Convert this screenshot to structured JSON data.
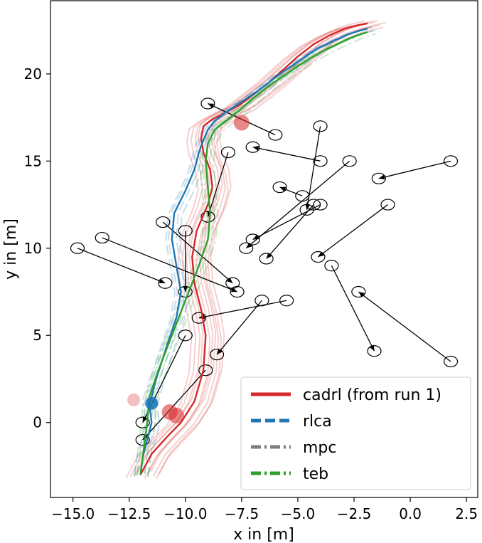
{
  "chart_data": {
    "type": "line",
    "xlabel": "x in [m]",
    "ylabel": "y in [m]",
    "xlim": [
      -16.0,
      3.0
    ],
    "ylim": [
      -4.3,
      24.2
    ],
    "xticks": [
      -15.0,
      -12.5,
      -10.0,
      -7.5,
      -5.0,
      -2.5,
      0.0,
      2.5
    ],
    "xtick_labels": [
      "−15.0",
      "−12.5",
      "−10.0",
      "−7.5",
      "−5.0",
      "−2.5",
      "0.0",
      "2.5"
    ],
    "yticks": [
      0,
      5,
      10,
      15,
      20
    ],
    "ytick_labels": [
      "0",
      "5",
      "10",
      "15",
      "20"
    ],
    "grid": false,
    "legend_position": "bottom-right",
    "series": [
      {
        "name": "cadrl (from run 1)",
        "color": "#d62728",
        "style": "solid",
        "x": [
          -12.0,
          -11.5,
          -10.8,
          -10.2,
          -9.6,
          -9.2,
          -9.1,
          -9.3,
          -9.6,
          -9.7,
          -9.5,
          -9.0,
          -8.8,
          -8.9,
          -9.2,
          -9.3,
          -9.2,
          -8.8,
          -8.2,
          -7.6,
          -7.0,
          -6.3,
          -5.6,
          -5.0,
          -4.3,
          -3.6,
          -2.9,
          -2.3,
          -1.9
        ],
        "y": [
          -3.0,
          -1.8,
          -0.8,
          0.0,
          1.2,
          3.0,
          5.0,
          6.5,
          8.0,
          9.5,
          11.0,
          12.5,
          13.5,
          14.5,
          15.5,
          16.3,
          17.0,
          17.4,
          17.8,
          18.2,
          18.8,
          19.5,
          20.3,
          21.0,
          21.7,
          22.2,
          22.6,
          22.8,
          22.9
        ]
      },
      {
        "name": "rlca",
        "color": "#1f77b4",
        "style": "dashed",
        "x": [
          -12.0,
          -11.9,
          -11.7,
          -11.5,
          -11.6,
          -11.3,
          -10.8,
          -10.4,
          -10.2,
          -10.4,
          -10.6,
          -10.5,
          -10.0,
          -9.6,
          -9.4,
          -9.2,
          -9.0,
          -8.7,
          -8.2,
          -7.5,
          -6.7,
          -5.9,
          -5.0,
          -4.2,
          -3.4,
          -2.7,
          -2.2,
          -1.9
        ],
        "y": [
          -3.0,
          -2.0,
          -1.0,
          0.0,
          1.0,
          2.5,
          4.5,
          6.0,
          7.5,
          9.0,
          10.5,
          12.0,
          13.3,
          14.5,
          15.5,
          16.2,
          16.8,
          17.3,
          17.8,
          18.4,
          19.1,
          19.9,
          20.7,
          21.4,
          21.9,
          22.3,
          22.5,
          22.6
        ]
      },
      {
        "name": "mpc",
        "color": "#7f7f7f",
        "style": "dashdot",
        "x": [],
        "y": []
      },
      {
        "name": "teb",
        "color": "#2ca02c",
        "style": "dashdot",
        "x": [
          -12.0,
          -11.9,
          -11.8,
          -11.7,
          -11.6,
          -11.2,
          -10.6,
          -10.0,
          -9.4,
          -9.0,
          -8.9,
          -9.0,
          -9.1,
          -9.0,
          -8.7,
          -8.2,
          -7.6,
          -7.0,
          -6.3,
          -5.5,
          -4.7,
          -3.9,
          -3.1,
          -2.4,
          -1.9
        ],
        "y": [
          -3.0,
          -2.0,
          -1.0,
          0.0,
          1.5,
          3.0,
          5.0,
          7.0,
          9.0,
          10.5,
          12.0,
          13.5,
          15.0,
          16.0,
          16.8,
          17.3,
          17.9,
          18.6,
          19.3,
          20.0,
          20.7,
          21.3,
          21.8,
          22.2,
          22.4
        ]
      }
    ],
    "agents": [
      {
        "start": [
          -6.0,
          16.5
        ],
        "end": [
          -9.0,
          18.3
        ]
      },
      {
        "start": [
          -4.0,
          15.0
        ],
        "end": [
          -7.0,
          15.8
        ]
      },
      {
        "start": [
          -4.0,
          17.0
        ],
        "end": [
          -4.6,
          12.2
        ]
      },
      {
        "start": [
          -2.7,
          15.0
        ],
        "end": [
          -7.3,
          10.0
        ]
      },
      {
        "start": [
          1.8,
          15.0
        ],
        "end": [
          -1.4,
          14.0
        ]
      },
      {
        "start": [
          -4.8,
          13.0
        ],
        "end": [
          -5.8,
          13.5
        ]
      },
      {
        "start": [
          -4.0,
          12.5
        ],
        "end": [
          -7.0,
          10.5
        ]
      },
      {
        "start": [
          -1.0,
          12.5
        ],
        "end": [
          -4.1,
          9.5
        ]
      },
      {
        "start": [
          -4.3,
          12.5
        ],
        "end": [
          -6.4,
          9.4
        ]
      },
      {
        "start": [
          -8.1,
          15.5
        ],
        "end": [
          -9.0,
          11.8
        ]
      },
      {
        "start": [
          -13.7,
          10.6
        ],
        "end": [
          -7.7,
          7.5
        ]
      },
      {
        "start": [
          -14.8,
          10.0
        ],
        "end": [
          -10.9,
          8.0
        ]
      },
      {
        "start": [
          -11.0,
          11.5
        ],
        "end": [
          -7.9,
          8.0
        ]
      },
      {
        "start": [
          -10.0,
          11.0
        ],
        "end": [
          -10.0,
          7.5
        ]
      },
      {
        "start": [
          -3.5,
          9.0
        ],
        "end": [
          -1.6,
          4.1
        ]
      },
      {
        "start": [
          1.8,
          3.5
        ],
        "end": [
          -2.3,
          7.5
        ]
      },
      {
        "start": [
          -6.6,
          7.0
        ],
        "end": [
          -8.6,
          3.9
        ]
      },
      {
        "start": [
          -5.5,
          7.0
        ],
        "end": [
          -9.4,
          6.0
        ]
      },
      {
        "start": [
          -10.0,
          5.0
        ],
        "end": [
          -11.9,
          0.0
        ]
      },
      {
        "start": [
          -9.1,
          3.0
        ],
        "end": [
          -11.9,
          -1.0
        ]
      }
    ],
    "legend": [
      "cadrl (from run 1)",
      "rlca",
      "mpc",
      "teb"
    ]
  }
}
